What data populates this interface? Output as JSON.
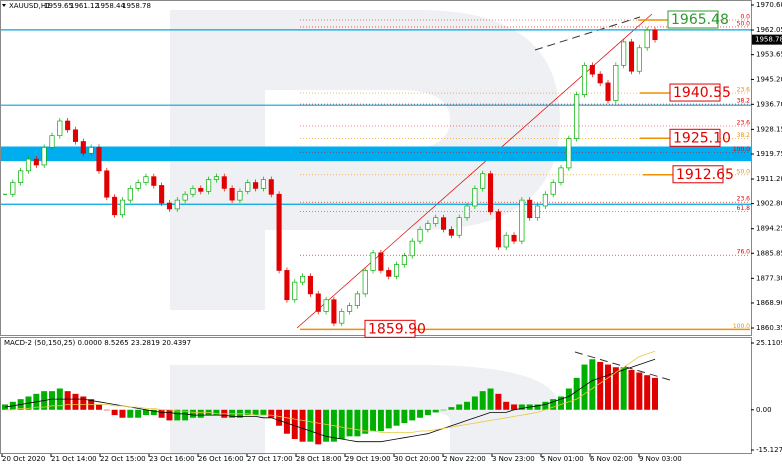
{
  "chart_data": {
    "type": "candlestick",
    "symbol": "XAUUSD,H1",
    "ohlc": [
      1959.65,
      1961.12,
      1958.44,
      1958.78
    ],
    "up_color": "#00b000",
    "down_color": "#e00000",
    "ylim": [
      1860.35,
      1970.6
    ],
    "yticks": [
      {
        "value": 1970.6,
        "label": "1970.60"
      },
      1962.05,
      1953.65,
      {
        "value": 1945.2,
        "label": "1945.20"
      },
      {
        "value": 1936.7,
        "label": "1936.70"
      },
      1928.15,
      1919.75,
      {
        "value": 1911.2,
        "label": "1911.20"
      },
      {
        "value": 1902.8,
        "label": "1902.80"
      },
      1894.25,
      1885.85,
      {
        "value": 1877.3,
        "label": "1877.30"
      },
      {
        "value": 1868.9,
        "label": "1868.90"
      },
      1860.35
    ],
    "categories": [
      "20 Oct 2020",
      "21 Oct 14:00",
      "22 Oct 15:00",
      "23 Oct 16:00",
      "26 Oct 16:00",
      "27 Oct 17:00",
      "28 Oct 18:00",
      "29 Oct 19:00",
      "30 Oct 20:00",
      "2 Nov 22:00",
      "3 Nov 23:00",
      "5 Nov 01:00",
      "6 Nov 02:00",
      "9 Nov 03:00"
    ],
    "closes": [
      1906,
      1910,
      1914,
      1918,
      1916,
      1922,
      1926,
      1931,
      1928,
      1924,
      1920,
      1922,
      1914,
      1905,
      1899,
      1904,
      1908,
      1910,
      1912,
      1909,
      1903,
      1901,
      1904,
      1906,
      1908,
      1907,
      1911,
      1912,
      1908,
      1904,
      1907,
      1910,
      1908,
      1911,
      1906,
      1880,
      1870,
      1876,
      1878,
      1872,
      1866,
      1870,
      1862,
      1866,
      1868,
      1872,
      1880,
      1886,
      1880,
      1878,
      1882,
      1885,
      1890,
      1894,
      1896,
      1898,
      1894,
      1892,
      1898,
      1902,
      1908,
      1913,
      1900,
      1888,
      1892,
      1890,
      1904,
      1898,
      1902,
      1906,
      1910,
      1915,
      1925,
      1940,
      1950,
      1947,
      1944,
      1938,
      1950,
      1958,
      1948,
      1956,
      1962,
      1958.78
    ],
    "levels": [
      1962.1,
      1936.4,
      1902.6
    ],
    "level_color": "#00a6e0",
    "zone": [
      1922.3,
      1917.3
    ],
    "zone_color": "#00aeef",
    "fibo": [
      {
        "name": "0.0",
        "price": 1965.48,
        "color": "#e00000"
      },
      {
        "name": "50.0",
        "price": 1963.1,
        "color": "#e00000"
      },
      {
        "name": "23.6",
        "price": 1940.55,
        "color": "#f09000"
      },
      {
        "name": "38.2",
        "price": 1936.8,
        "color": "#e00000"
      },
      {
        "name": "23.6",
        "price": 1929.3,
        "color": "#e00000"
      },
      {
        "name": "38.2",
        "price": 1925.1,
        "color": "#f09000"
      },
      {
        "name": "100.0",
        "price": 1920.3,
        "color": "#e00000"
      },
      {
        "name": "50.0",
        "price": 1912.65,
        "color": "#f09000"
      },
      {
        "name": "23.6",
        "price": 1903.3,
        "color": "#e00000"
      },
      {
        "name": "61.8",
        "price": 1900.2,
        "color": "#e00000"
      },
      {
        "name": "76.0",
        "price": 1885.2,
        "color": "#e00000"
      },
      {
        "name": "100.0",
        "price": 1859.9,
        "color": "#f09000"
      }
    ],
    "targets": {
      "values": [
        1965.48,
        1940.55,
        1925.1,
        1912.65,
        1859.9
      ],
      "value_labels": [
        "1965.48",
        "1940.55",
        "1925.10",
        "1912.65",
        "1859.90"
      ],
      "colors": [
        "#2e9a2e",
        "#e00000",
        "#e00000",
        "#e00000",
        "#e00000"
      ]
    },
    "macd": {
      "title": "MACD-2 (50,150,25) 0.0000 8.5265 23.2819 20.4397",
      "ylim": [
        -15.1274,
        25.1109
      ],
      "yticks": [
        25.1109,
        {
          "value": 0,
          "label": "0.00"
        },
        -15.1274
      ],
      "histogram": [
        2,
        3,
        4,
        5,
        6,
        7,
        7,
        8,
        7,
        6,
        5,
        4,
        2,
        0,
        -2,
        -3,
        -3,
        -3,
        -2,
        -2,
        -3,
        -4,
        -4,
        -4,
        -3,
        -3,
        -2,
        -2,
        -3,
        -3,
        -3,
        -2,
        -2,
        -2,
        -3,
        -6,
        -9,
        -11,
        -12,
        -12,
        -13,
        -12,
        -12,
        -11,
        -10,
        -10,
        -9,
        -8,
        -8,
        -7,
        -6,
        -5,
        -4,
        -3,
        -2,
        -1,
        0,
        1,
        2,
        3,
        5,
        7,
        8,
        6,
        3,
        2,
        2,
        2,
        2,
        3,
        4,
        5,
        8,
        12,
        17,
        19,
        18,
        17,
        16,
        16,
        15,
        14,
        13,
        12
      ],
      "line1": [
        1,
        1.5,
        2,
        2.5,
        3,
        3.5,
        4,
        4,
        4,
        4,
        4,
        3.5,
        3,
        2.5,
        2,
        1.5,
        1,
        0.5,
        0,
        -0.5,
        -1,
        -1,
        -1.5,
        -1.5,
        -2,
        -2,
        -2,
        -2,
        -2,
        -2.5,
        -2.5,
        -2.5,
        -2.5,
        -3,
        -3,
        -4,
        -5,
        -6,
        -7,
        -8,
        -9,
        -10,
        -10.5,
        -11,
        -11.5,
        -12,
        -12,
        -12,
        -12,
        -11.5,
        -11,
        -10.5,
        -10,
        -9.5,
        -9,
        -8,
        -7,
        -6,
        -5,
        -4,
        -3,
        -2,
        -1,
        -1,
        -1,
        0,
        0.5,
        1,
        1.5,
        2,
        3,
        4,
        5,
        7,
        9,
        11,
        12,
        13,
        14,
        15,
        16,
        17,
        18,
        19
      ],
      "line1_color": "#000000",
      "line2": [
        0,
        0,
        0.5,
        0.5,
        1,
        1,
        1.5,
        1.5,
        2,
        2,
        2,
        2,
        2,
        2,
        1.5,
        1.5,
        1,
        1,
        0.5,
        0.5,
        0,
        0,
        -0.5,
        -0.5,
        -1,
        -1,
        -1,
        -1.5,
        -1.5,
        -1.5,
        -1.5,
        -1.5,
        -2,
        -2,
        -2,
        -2.5,
        -3,
        -3.5,
        -4,
        -4.5,
        -5,
        -5.5,
        -6,
        -6.5,
        -7,
        -7.5,
        -8,
        -8,
        -8.5,
        -8.5,
        -8.5,
        -8.5,
        -8.5,
        -8,
        -8,
        -7.5,
        -7,
        -6.5,
        -6,
        -5.5,
        -5,
        -4.5,
        -4,
        -3.5,
        -3,
        -2.5,
        -2,
        -1.5,
        -1,
        0,
        1,
        2,
        3,
        4,
        6,
        8,
        10,
        12,
        14,
        16,
        18,
        20,
        21,
        22
      ],
      "line2_color": "#e8c840"
    }
  }
}
